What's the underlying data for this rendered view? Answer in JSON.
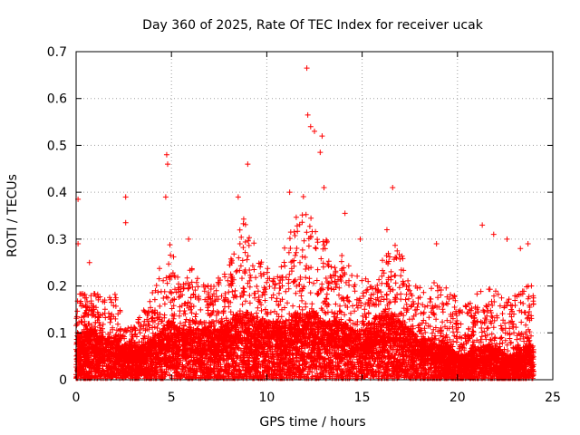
{
  "chart_data": {
    "type": "scatter",
    "title": "Day 360 of 2025, Rate Of TEC Index for receiver ucak",
    "xlabel": "GPS time / hours",
    "ylabel": "ROTI / TECUs",
    "xlim": [
      0,
      25
    ],
    "ylim": [
      0,
      0.7
    ],
    "xticks": [
      "0",
      "5",
      "10",
      "15",
      "20",
      "25"
    ],
    "yticks": [
      "0",
      "0.1",
      "0.2",
      "0.3",
      "0.4",
      "0.5",
      "0.6",
      "0.7"
    ],
    "grid": true,
    "marker": "+",
    "color": "#ff0000",
    "notable_points": [
      {
        "x": 0.1,
        "y": 0.385
      },
      {
        "x": 0.1,
        "y": 0.29
      },
      {
        "x": 0.7,
        "y": 0.25
      },
      {
        "x": 2.6,
        "y": 0.39
      },
      {
        "x": 2.6,
        "y": 0.335
      },
      {
        "x": 4.75,
        "y": 0.48
      },
      {
        "x": 4.8,
        "y": 0.46
      },
      {
        "x": 4.7,
        "y": 0.39
      },
      {
        "x": 5.9,
        "y": 0.3
      },
      {
        "x": 9.0,
        "y": 0.46
      },
      {
        "x": 8.5,
        "y": 0.39
      },
      {
        "x": 11.2,
        "y": 0.4
      },
      {
        "x": 12.1,
        "y": 0.665
      },
      {
        "x": 12.15,
        "y": 0.565
      },
      {
        "x": 12.3,
        "y": 0.54
      },
      {
        "x": 12.5,
        "y": 0.53
      },
      {
        "x": 12.9,
        "y": 0.52
      },
      {
        "x": 12.8,
        "y": 0.485
      },
      {
        "x": 13.0,
        "y": 0.41
      },
      {
        "x": 14.1,
        "y": 0.355
      },
      {
        "x": 14.9,
        "y": 0.3
      },
      {
        "x": 16.6,
        "y": 0.41
      },
      {
        "x": 16.3,
        "y": 0.32
      },
      {
        "x": 18.9,
        "y": 0.29
      },
      {
        "x": 21.3,
        "y": 0.33
      },
      {
        "x": 21.9,
        "y": 0.31
      },
      {
        "x": 22.6,
        "y": 0.3
      },
      {
        "x": 23.3,
        "y": 0.28
      },
      {
        "x": 23.7,
        "y": 0.29
      }
    ],
    "envelope": {
      "hours": [
        0,
        0.5,
        1,
        1.5,
        2,
        2.5,
        3,
        3.5,
        4,
        4.5,
        5,
        5.5,
        6,
        6.5,
        7,
        7.5,
        8,
        8.5,
        9,
        9.5,
        10,
        10.5,
        11,
        11.5,
        12,
        12.5,
        13,
        13.5,
        14,
        14.5,
        15,
        15.5,
        16,
        16.5,
        17,
        17.5,
        18,
        18.5,
        19,
        19.5,
        20,
        20.5,
        21,
        21.5,
        22,
        22.5,
        23,
        23.5,
        24
      ],
      "typical_max": [
        0.22,
        0.18,
        0.2,
        0.17,
        0.19,
        0.12,
        0.11,
        0.15,
        0.2,
        0.26,
        0.3,
        0.2,
        0.24,
        0.22,
        0.2,
        0.22,
        0.24,
        0.32,
        0.36,
        0.26,
        0.24,
        0.22,
        0.3,
        0.36,
        0.4,
        0.38,
        0.32,
        0.25,
        0.28,
        0.22,
        0.24,
        0.2,
        0.26,
        0.3,
        0.28,
        0.2,
        0.2,
        0.22,
        0.2,
        0.2,
        0.17,
        0.16,
        0.19,
        0.2,
        0.2,
        0.17,
        0.18,
        0.2,
        0.22
      ],
      "typical_mean": [
        0.05,
        0.06,
        0.06,
        0.05,
        0.05,
        0.04,
        0.04,
        0.04,
        0.05,
        0.06,
        0.07,
        0.06,
        0.06,
        0.06,
        0.06,
        0.06,
        0.07,
        0.08,
        0.08,
        0.07,
        0.07,
        0.07,
        0.07,
        0.08,
        0.08,
        0.08,
        0.07,
        0.07,
        0.07,
        0.06,
        0.06,
        0.07,
        0.08,
        0.08,
        0.07,
        0.06,
        0.05,
        0.05,
        0.04,
        0.04,
        0.03,
        0.03,
        0.04,
        0.04,
        0.04,
        0.03,
        0.03,
        0.04,
        0.04
      ]
    }
  }
}
